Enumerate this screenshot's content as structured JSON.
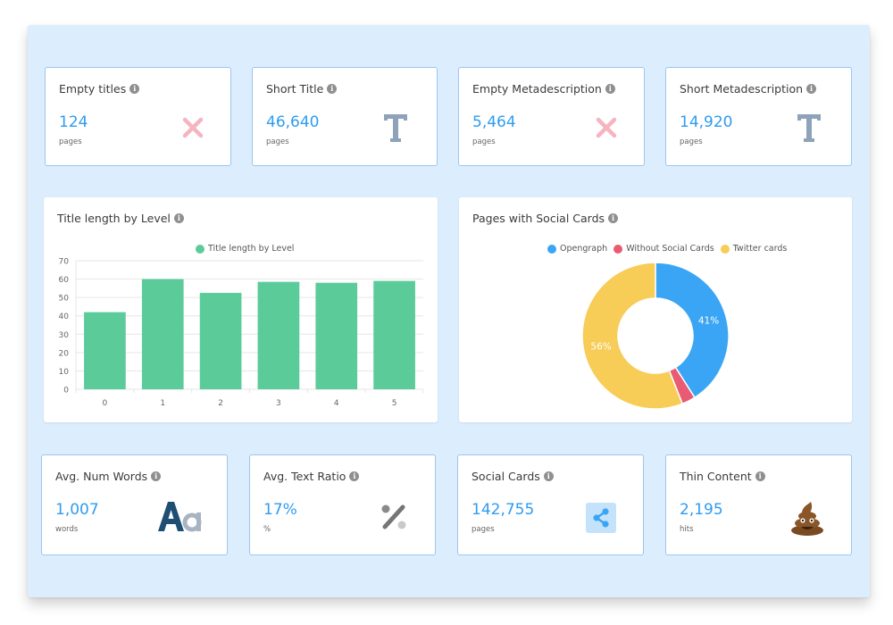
{
  "colors": {
    "accent": "#2e9cf0",
    "bar": "#5ccb9a",
    "opengraph": "#3aa5f4",
    "without_social": "#e95a73",
    "twitter": "#f7cc57",
    "panel_bg": "#dcedfd"
  },
  "top_cards": [
    {
      "title": "Empty titles",
      "value": "124",
      "unit": "pages",
      "icon": "x-icon"
    },
    {
      "title": "Short Title",
      "value": "46,640",
      "unit": "pages",
      "icon": "t-icon"
    },
    {
      "title": "Empty Metadescription",
      "value": "5,464",
      "unit": "pages",
      "icon": "x-icon"
    },
    {
      "title": "Short Metadescription",
      "value": "14,920",
      "unit": "pages",
      "icon": "t-icon"
    }
  ],
  "bottom_cards": [
    {
      "title": "Avg. Num Words",
      "value": "1,007",
      "unit": "words",
      "icon": "font-aa-icon"
    },
    {
      "title": "Avg. Text Ratio",
      "value": "17%",
      "unit": "%",
      "icon": "percent-icon"
    },
    {
      "title": "Social Cards",
      "value": "142,755",
      "unit": "pages",
      "icon": "share-icon"
    },
    {
      "title": "Thin Content",
      "value": "2,195",
      "unit": "hits",
      "icon": "poop-icon"
    }
  ],
  "bar_chart": {
    "title": "Title length by Level"
  },
  "donut_chart": {
    "title": "Pages with Social Cards"
  },
  "chart_data": [
    {
      "type": "bar",
      "title": "Title length by Level",
      "categories": [
        "0",
        "1",
        "2",
        "3",
        "4",
        "5"
      ],
      "series": [
        {
          "name": "Title length by Level",
          "values": [
            42,
            60,
            52.5,
            58.5,
            58,
            59
          ]
        }
      ],
      "ylim": [
        0,
        70
      ],
      "yticks": [
        "0",
        "10",
        "20",
        "30",
        "40",
        "50",
        "60",
        "70"
      ],
      "grid": true,
      "legend": "top-center"
    },
    {
      "type": "pie",
      "title": "Pages with Social Cards",
      "labels": [
        "Opengraph",
        "Without Social Cards",
        "Twitter cards"
      ],
      "values": [
        41,
        3,
        56
      ],
      "data_labels": [
        "41%",
        "",
        "56%"
      ],
      "legend": "top-center"
    }
  ]
}
